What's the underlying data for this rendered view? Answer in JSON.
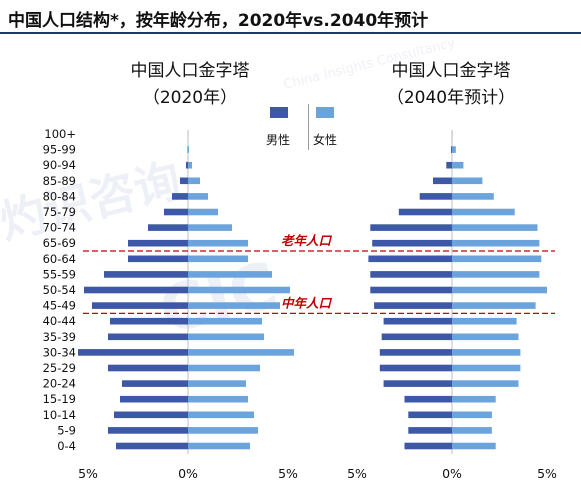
{
  "header": {
    "title": "中国人口结构*，按年龄分布，2020年vs.2040年预计"
  },
  "colors": {
    "male": "#3d58a6",
    "female": "#6ba3dc",
    "divider": "#c00000",
    "annotation": "#c00000",
    "title_rule": "#1f3864"
  },
  "legend": {
    "male_label": "男性",
    "female_label": "女性"
  },
  "watermark": {
    "brand": "CIC",
    "company_en": "China Insights Consultancy",
    "company_cn": "灼识咨询"
  },
  "chart_data": [
    {
      "type": "bar",
      "orientation": "population-pyramid",
      "title": "中国人口金字塔",
      "subtitle": "（2020年）",
      "categories": [
        "100+",
        "95-99",
        "90-94",
        "85-89",
        "80-84",
        "75-79",
        "70-74",
        "65-69",
        "60-64",
        "55-59",
        "50-54",
        "45-49",
        "40-44",
        "35-39",
        "30-34",
        "25-29",
        "20-24",
        "15-19",
        "10-14",
        "5-9",
        "0-4"
      ],
      "series": [
        {
          "name": "男性",
          "values": [
            0.0,
            0.02,
            0.1,
            0.4,
            0.8,
            1.2,
            2.0,
            3.0,
            3.0,
            4.2,
            5.2,
            4.8,
            3.9,
            4.0,
            5.5,
            4.0,
            3.3,
            3.4,
            3.7,
            4.0,
            3.6
          ]
        },
        {
          "name": "女性",
          "values": [
            0.01,
            0.05,
            0.2,
            0.6,
            1.0,
            1.5,
            2.2,
            3.0,
            3.0,
            4.2,
            5.1,
            4.6,
            3.7,
            3.8,
            5.3,
            3.6,
            2.9,
            3.0,
            3.3,
            3.5,
            3.1
          ]
        }
      ],
      "xticks": [
        "5%",
        "0%",
        "5%"
      ],
      "xlim": [
        -6.0,
        6.0
      ],
      "annotations": [
        {
          "text": "老年人口",
          "boundary_between": [
            "65-69",
            "60-64"
          ]
        },
        {
          "text": "中年人口",
          "boundary_between": [
            "45-49",
            "40-44"
          ]
        }
      ]
    },
    {
      "type": "bar",
      "orientation": "population-pyramid",
      "title": "中国人口金字塔",
      "subtitle": "（2040年预计）",
      "categories": [
        "100+",
        "95-99",
        "90-94",
        "85-89",
        "80-84",
        "75-79",
        "70-74",
        "65-69",
        "60-64",
        "55-59",
        "50-54",
        "45-49",
        "40-44",
        "35-39",
        "30-34",
        "25-29",
        "20-24",
        "15-19",
        "10-14",
        "5-9",
        "0-4"
      ],
      "series": [
        {
          "name": "男性",
          "values": [
            0.0,
            0.05,
            0.3,
            1.0,
            1.7,
            2.8,
            4.3,
            4.2,
            4.4,
            4.3,
            4.3,
            4.1,
            3.6,
            3.7,
            3.8,
            3.8,
            3.6,
            2.5,
            2.3,
            2.3,
            2.5
          ]
        },
        {
          "name": "女性",
          "values": [
            0.02,
            0.2,
            0.6,
            1.6,
            2.2,
            3.3,
            4.5,
            4.6,
            4.7,
            4.6,
            5.0,
            4.4,
            3.4,
            3.5,
            3.6,
            3.6,
            3.5,
            2.3,
            2.1,
            2.1,
            2.3
          ]
        }
      ],
      "xticks": [
        "5%",
        "0%",
        "5%"
      ],
      "xlim": [
        -6.0,
        6.0
      ],
      "annotations": []
    }
  ]
}
